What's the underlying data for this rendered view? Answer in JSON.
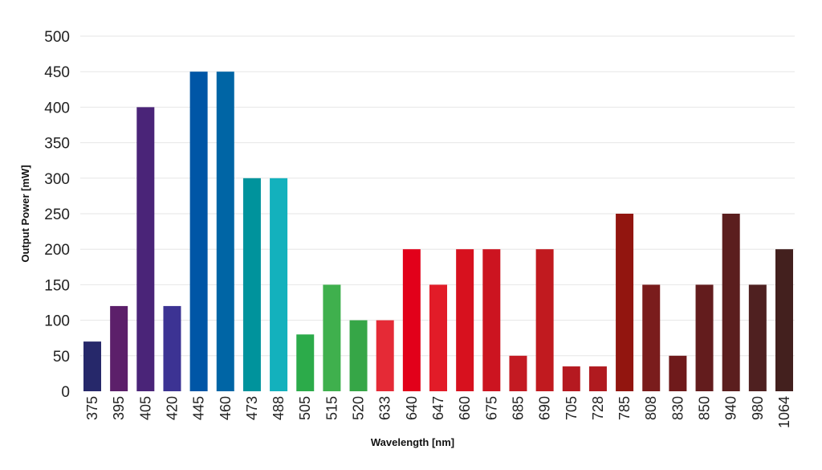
{
  "chart_data": {
    "type": "bar",
    "title": "",
    "xlabel": "Wavelength [nm]",
    "ylabel": "Output Power [mW]",
    "ylim": [
      0,
      500
    ],
    "yticks": [
      0,
      50,
      100,
      150,
      200,
      250,
      300,
      350,
      400,
      450,
      500
    ],
    "grid": true,
    "categories": [
      "375",
      "395",
      "405",
      "420",
      "445",
      "460",
      "473",
      "488",
      "505",
      "515",
      "520",
      "633",
      "640",
      "647",
      "660",
      "675",
      "685",
      "690",
      "705",
      "728",
      "785",
      "808",
      "830",
      "850",
      "940",
      "980",
      "1064"
    ],
    "values": [
      70,
      120,
      400,
      120,
      450,
      450,
      300,
      300,
      80,
      150,
      100,
      100,
      200,
      150,
      200,
      200,
      50,
      200,
      35,
      35,
      250,
      150,
      50,
      150,
      250,
      150,
      200
    ],
    "colors": [
      "#26286a",
      "#5c1f6a",
      "#4a2478",
      "#3c3393",
      "#0056a6",
      "#0065a5",
      "#00939c",
      "#13b1bd",
      "#2cab4a",
      "#3fb04d",
      "#36a647",
      "#e52a36",
      "#e2001a",
      "#e21c28",
      "#d7111e",
      "#cc1420",
      "#c41a22",
      "#c11a1f",
      "#b51920",
      "#b01a1f",
      "#92150f",
      "#7a1c1c",
      "#6f1a1b",
      "#631c1d",
      "#5b1e1e",
      "#4f2020",
      "#43201e"
    ]
  }
}
